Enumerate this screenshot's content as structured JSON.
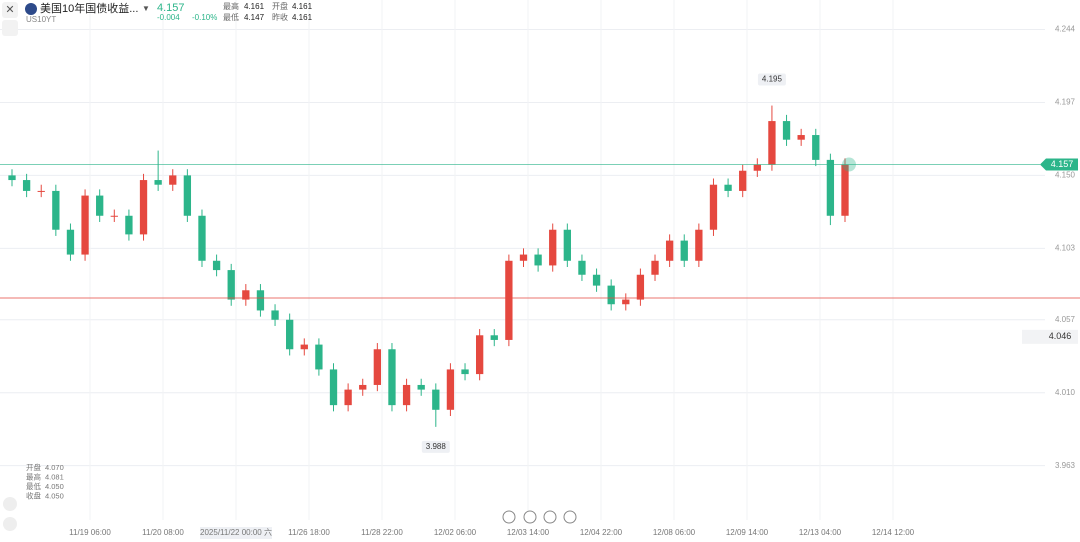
{
  "header": {
    "title": "美国10年国债收益...",
    "symbol": "US10YT",
    "price": "4.157",
    "change": "-0.004",
    "change_pct": "-0.10%",
    "high_label": "最高",
    "high": "4.161",
    "open_label": "开盘",
    "open": "4.161",
    "low_label": "最低",
    "low": "4.147",
    "prev_label": "昨收",
    "prev": "4.161"
  },
  "info": {
    "rows": [
      [
        "开盘",
        "4.070"
      ],
      [
        "最高",
        "4.081"
      ],
      [
        "最低",
        "4.050"
      ],
      [
        "收盘",
        "4.050"
      ]
    ]
  },
  "chart_data": {
    "type": "candlestick",
    "open": [
      4.15,
      4.147,
      4.14,
      4.14,
      4.115,
      4.099,
      4.137,
      4.124,
      4.124,
      4.112,
      4.147,
      4.144,
      4.15,
      4.124,
      4.095,
      4.089,
      4.07,
      4.076,
      4.063,
      4.057,
      4.038,
      4.041,
      4.025,
      4.002,
      4.012,
      4.015,
      4.038,
      4.002,
      4.015,
      4.012,
      3.999,
      4.025,
      4.022,
      4.047,
      4.044,
      4.095,
      4.099,
      4.092,
      4.115,
      4.095,
      4.086,
      4.079,
      4.067,
      4.07,
      4.086,
      4.095,
      4.108,
      4.095,
      4.115,
      4.144,
      4.14,
      4.153,
      4.157,
      4.185,
      4.173,
      4.176,
      4.16,
      4.124
    ],
    "high": [
      4.154,
      4.151,
      4.144,
      4.144,
      4.119,
      4.141,
      4.141,
      4.128,
      4.128,
      4.151,
      4.166,
      4.154,
      4.154,
      4.128,
      4.099,
      4.093,
      4.08,
      4.08,
      4.067,
      4.061,
      4.045,
      4.045,
      4.029,
      4.016,
      4.019,
      4.042,
      4.042,
      4.019,
      4.019,
      4.016,
      4.029,
      4.029,
      4.051,
      4.051,
      4.099,
      4.103,
      4.103,
      4.119,
      4.119,
      4.099,
      4.09,
      4.083,
      4.074,
      4.09,
      4.099,
      4.112,
      4.112,
      4.119,
      4.148,
      4.148,
      4.157,
      4.161,
      4.195,
      4.189,
      4.18,
      4.18,
      4.164,
      4.161
    ],
    "low": [
      4.143,
      4.136,
      4.136,
      4.111,
      4.095,
      4.095,
      4.12,
      4.12,
      4.108,
      4.108,
      4.14,
      4.14,
      4.12,
      4.091,
      4.085,
      4.066,
      4.066,
      4.059,
      4.053,
      4.034,
      4.034,
      4.021,
      3.998,
      3.998,
      4.008,
      4.011,
      3.998,
      3.998,
      4.008,
      3.988,
      3.995,
      4.018,
      4.018,
      4.04,
      4.04,
      4.091,
      4.088,
      4.088,
      4.091,
      4.082,
      4.075,
      4.063,
      4.063,
      4.066,
      4.082,
      4.091,
      4.091,
      4.091,
      4.111,
      4.136,
      4.136,
      4.149,
      4.153,
      4.169,
      4.169,
      4.156,
      4.118,
      4.12
    ],
    "close": [
      4.147,
      4.14,
      4.14,
      4.115,
      4.099,
      4.137,
      4.124,
      4.124,
      4.112,
      4.147,
      4.144,
      4.15,
      4.124,
      4.095,
      4.089,
      4.07,
      4.076,
      4.063,
      4.057,
      4.038,
      4.041,
      4.025,
      4.002,
      4.012,
      4.015,
      4.038,
      4.002,
      4.015,
      4.012,
      3.999,
      4.025,
      4.022,
      4.047,
      4.044,
      4.095,
      4.099,
      4.092,
      4.115,
      4.095,
      4.086,
      4.079,
      4.067,
      4.07,
      4.086,
      4.095,
      4.108,
      4.095,
      4.115,
      4.144,
      4.14,
      4.153,
      4.157,
      4.185,
      4.173,
      4.176,
      4.16,
      4.124,
      4.157
    ],
    "up_color": "#e5483f",
    "down_color": "#2cb58a",
    "ylim": [
      3.928,
      4.263
    ],
    "yticks": [
      4.244,
      4.197,
      {
        "value": 4.15,
        "label": "4.150"
      },
      4.103,
      4.057,
      {
        "value": 4.01,
        "label": "4.010"
      },
      3.963
    ],
    "xticks": [
      "11/19 06:00",
      "11/20 08:00",
      "2025/11/22 00:00 六",
      "11/26 18:00",
      "11/28 22:00",
      "12/02 06:00",
      "12/03 14:00",
      "12/04 22:00",
      "12/08 06:00",
      "12/09 14:00",
      "12/13 04:00",
      "12/14 12:00"
    ],
    "last_price": 4.157,
    "last_color": "#2cb58a",
    "ref_line": 4.071,
    "ref_color": "#e5483f",
    "alert": 4.046,
    "grid": true
  }
}
